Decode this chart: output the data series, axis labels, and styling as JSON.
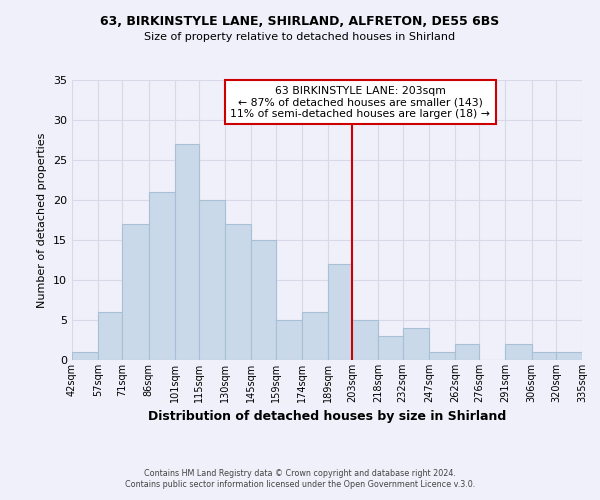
{
  "title1": "63, BIRKINSTYLE LANE, SHIRLAND, ALFRETON, DE55 6BS",
  "title2": "Size of property relative to detached houses in Shirland",
  "xlabel": "Distribution of detached houses by size in Shirland",
  "ylabel": "Number of detached properties",
  "bar_color": "#c9d9ea",
  "bar_edgecolor": "#a8c0d6",
  "grid_color": "#d8d8e8",
  "vline_x": 203,
  "vline_color": "#cc0000",
  "annotation_title": "63 BIRKINSTYLE LANE: 203sqm",
  "annotation_line1": "← 87% of detached houses are smaller (143)",
  "annotation_line2": "11% of semi-detached houses are larger (18) →",
  "annotation_box_color": "#ffffff",
  "annotation_box_edgecolor": "#cc0000",
  "bin_edges": [
    42,
    57,
    71,
    86,
    101,
    115,
    130,
    145,
    159,
    174,
    189,
    203,
    218,
    232,
    247,
    262,
    276,
    291,
    306,
    320,
    335
  ],
  "counts": [
    1,
    6,
    17,
    21,
    27,
    20,
    17,
    15,
    5,
    6,
    12,
    5,
    3,
    4,
    1,
    2,
    0,
    2,
    1,
    1
  ],
  "ylim": [
    0,
    35
  ],
  "yticks": [
    0,
    5,
    10,
    15,
    20,
    25,
    30,
    35
  ],
  "footer1": "Contains HM Land Registry data © Crown copyright and database right 2024.",
  "footer2": "Contains public sector information licensed under the Open Government Licence v.3.0.",
  "background_color": "#f0f0fa"
}
